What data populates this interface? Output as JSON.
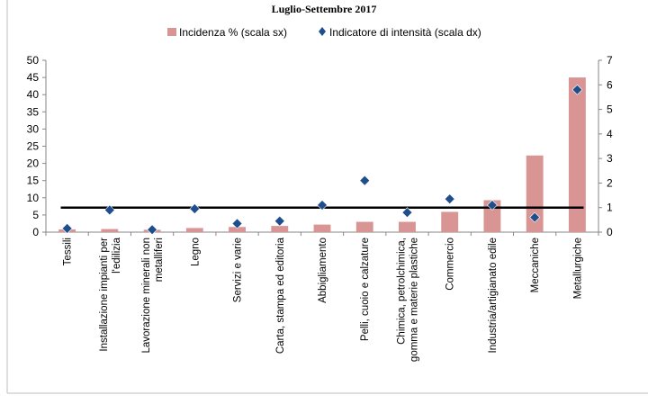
{
  "chart_data": {
    "type": "bar",
    "title": "Luglio-Settembre 2017",
    "categories": [
      [
        "Tessili"
      ],
      [
        "Installazione impianti per",
        "l'edilizia"
      ],
      [
        "Lavorazione minerali non",
        "metalliferi"
      ],
      [
        "Legno"
      ],
      [
        "Servizi e varie"
      ],
      [
        "Carta, stampa ed editoria"
      ],
      [
        "Abbigliamento"
      ],
      [
        "Pelli, cuoio e calzature"
      ],
      [
        "Chimica, petrolchimica,",
        "gomma e materie plastiche"
      ],
      [
        "Commercio"
      ],
      [
        "Industria/artigianato edile"
      ],
      [
        "Meccaniche"
      ],
      [
        "Metallurgiche"
      ]
    ],
    "series": [
      {
        "name": "Incidenza % (scala sx)",
        "type": "bar",
        "axis": "left",
        "color": "#d99594",
        "values": [
          0.8,
          0.9,
          0.7,
          1.2,
          1.5,
          1.8,
          2.2,
          3.0,
          3.0,
          5.9,
          9.3,
          22.3,
          45.0
        ]
      },
      {
        "name": "Indicatore di intensità (scala dx)",
        "type": "scatter",
        "axis": "right",
        "color": "#1f4e8c",
        "marker": "diamond",
        "values": [
          0.15,
          0.9,
          0.1,
          0.95,
          0.35,
          0.45,
          1.1,
          2.1,
          0.8,
          1.35,
          1.1,
          0.6,
          5.8
        ]
      }
    ],
    "reference_line": {
      "axis": "right",
      "value": 1.0,
      "color": "#000000"
    },
    "yleft": {
      "min": 0,
      "max": 50,
      "ticks": [
        0,
        5,
        10,
        15,
        20,
        25,
        30,
        35,
        40,
        45,
        50
      ]
    },
    "yright": {
      "min": 0,
      "max": 7,
      "ticks": [
        0,
        1,
        2,
        3,
        4,
        5,
        6,
        7
      ]
    },
    "grid": false,
    "legend": "top"
  }
}
